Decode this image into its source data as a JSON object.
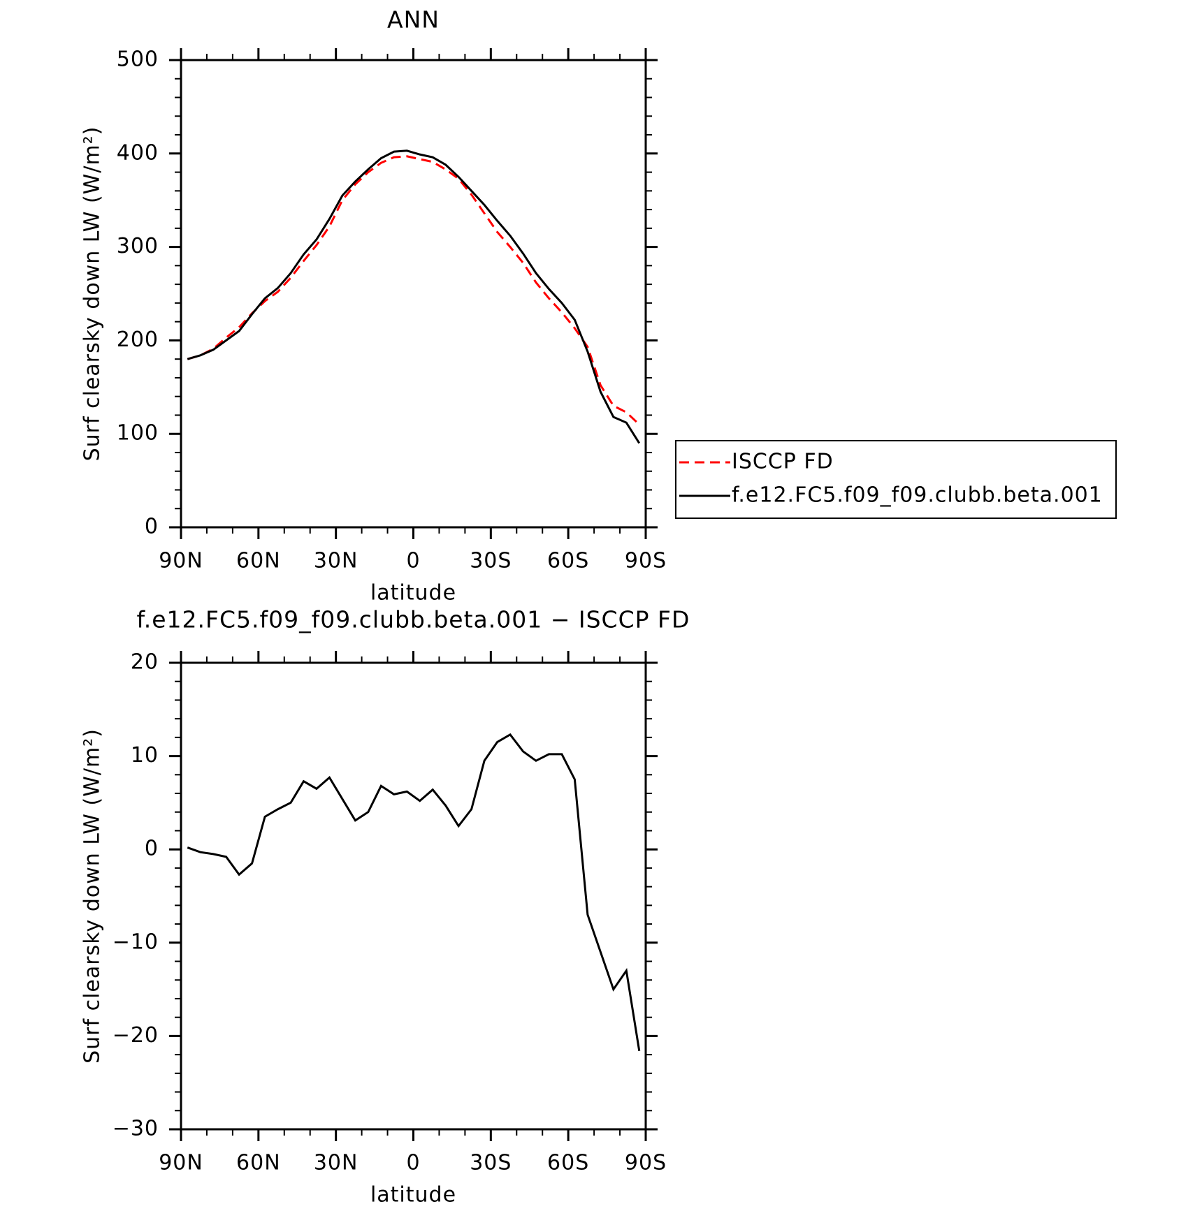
{
  "chart_data": [
    {
      "type": "line",
      "title": "ANN",
      "xlabel": "latitude",
      "ylabel": "Surf clearsky down LW (W/m²)",
      "x": [
        87.5,
        82.5,
        77.5,
        72.5,
        67.5,
        62.5,
        57.5,
        52.5,
        47.5,
        42.5,
        37.5,
        32.5,
        27.5,
        22.5,
        17.5,
        12.5,
        7.5,
        2.5,
        -2.5,
        -7.5,
        -12.5,
        -17.5,
        -22.5,
        -27.5,
        -32.5,
        -37.5,
        -42.5,
        -47.5,
        -52.5,
        -57.5,
        -62.5,
        -67.5,
        -72.5,
        -77.5,
        -82.5,
        -87.5
      ],
      "series": [
        {
          "name": "ISCCP FD",
          "color": "#ff0000",
          "style": "dashed",
          "values": [
            180,
            184,
            191,
            203,
            214,
            229,
            242,
            252,
            267,
            285,
            302,
            322,
            350,
            367,
            380,
            390,
            396,
            397,
            394,
            391,
            383,
            373,
            356,
            336,
            316,
            300,
            283,
            262,
            245,
            230,
            213,
            193,
            152,
            130,
            123,
            110
          ]
        },
        {
          "name": "f.e12.FC5.f09_f09.clubb.beta.001",
          "color": "#000000",
          "style": "solid",
          "values": [
            180,
            184,
            190,
            200,
            210,
            228,
            245,
            256,
            272,
            292,
            308,
            330,
            355,
            370,
            383,
            395,
            402,
            403,
            399,
            396,
            388,
            375,
            360,
            345,
            328,
            312,
            293,
            272,
            255,
            240,
            222,
            188,
            145,
            118,
            112,
            90
          ]
        }
      ],
      "xlim": [
        90,
        -90
      ],
      "xticks": [
        {
          "value": 90,
          "label": "90N"
        },
        {
          "value": 60,
          "label": "60N"
        },
        {
          "value": 30,
          "label": "30N"
        },
        0,
        {
          "value": -30,
          "label": "30S"
        },
        {
          "value": -60,
          "label": "60S"
        },
        {
          "value": -90,
          "label": "90S"
        }
      ],
      "ylim": [
        0,
        500
      ],
      "yticks": [
        0,
        100,
        200,
        300,
        400,
        500
      ],
      "legend": "outside-right"
    },
    {
      "type": "line",
      "title": "f.e12.FC5.f09_f09.clubb.beta.001 − ISCCP FD",
      "xlabel": "latitude",
      "ylabel": "Surf clearsky down LW (W/m²)",
      "x": [
        87.5,
        82.5,
        77.5,
        72.5,
        67.5,
        62.5,
        57.5,
        52.5,
        47.5,
        42.5,
        37.5,
        32.5,
        27.5,
        22.5,
        17.5,
        12.5,
        7.5,
        2.5,
        -2.5,
        -7.5,
        -12.5,
        -17.5,
        -22.5,
        -27.5,
        -32.5,
        -37.5,
        -42.5,
        -47.5,
        -52.5,
        -57.5,
        -62.5,
        -67.5,
        -72.5,
        -77.5,
        -82.5,
        -87.5
      ],
      "color": "#000000",
      "values": [
        0.2,
        -0.3,
        -0.5,
        -0.8,
        -2.7,
        -1.5,
        3.5,
        4.3,
        5.0,
        7.3,
        6.5,
        7.7,
        5.4,
        3.1,
        4.0,
        6.8,
        5.9,
        6.2,
        5.2,
        6.4,
        4.7,
        2.5,
        4.3,
        9.5,
        11.5,
        12.3,
        10.5,
        9.5,
        10.2,
        10.2,
        7.5,
        -7,
        -11,
        -15,
        -13,
        -21.6
      ],
      "xlim": [
        90,
        -90
      ],
      "xticks": [
        {
          "value": 90,
          "label": "90N"
        },
        {
          "value": 60,
          "label": "60N"
        },
        {
          "value": 30,
          "label": "30N"
        },
        0,
        {
          "value": -30,
          "label": "30S"
        },
        {
          "value": -60,
          "label": "60S"
        },
        {
          "value": -90,
          "label": "90S"
        }
      ],
      "ylim": [
        -30,
        20
      ],
      "yticks": [
        {
          "value": -30,
          "label": "−30"
        },
        {
          "value": -20,
          "label": "−20"
        },
        {
          "value": -10,
          "label": "−10"
        },
        0,
        10,
        20
      ]
    }
  ]
}
